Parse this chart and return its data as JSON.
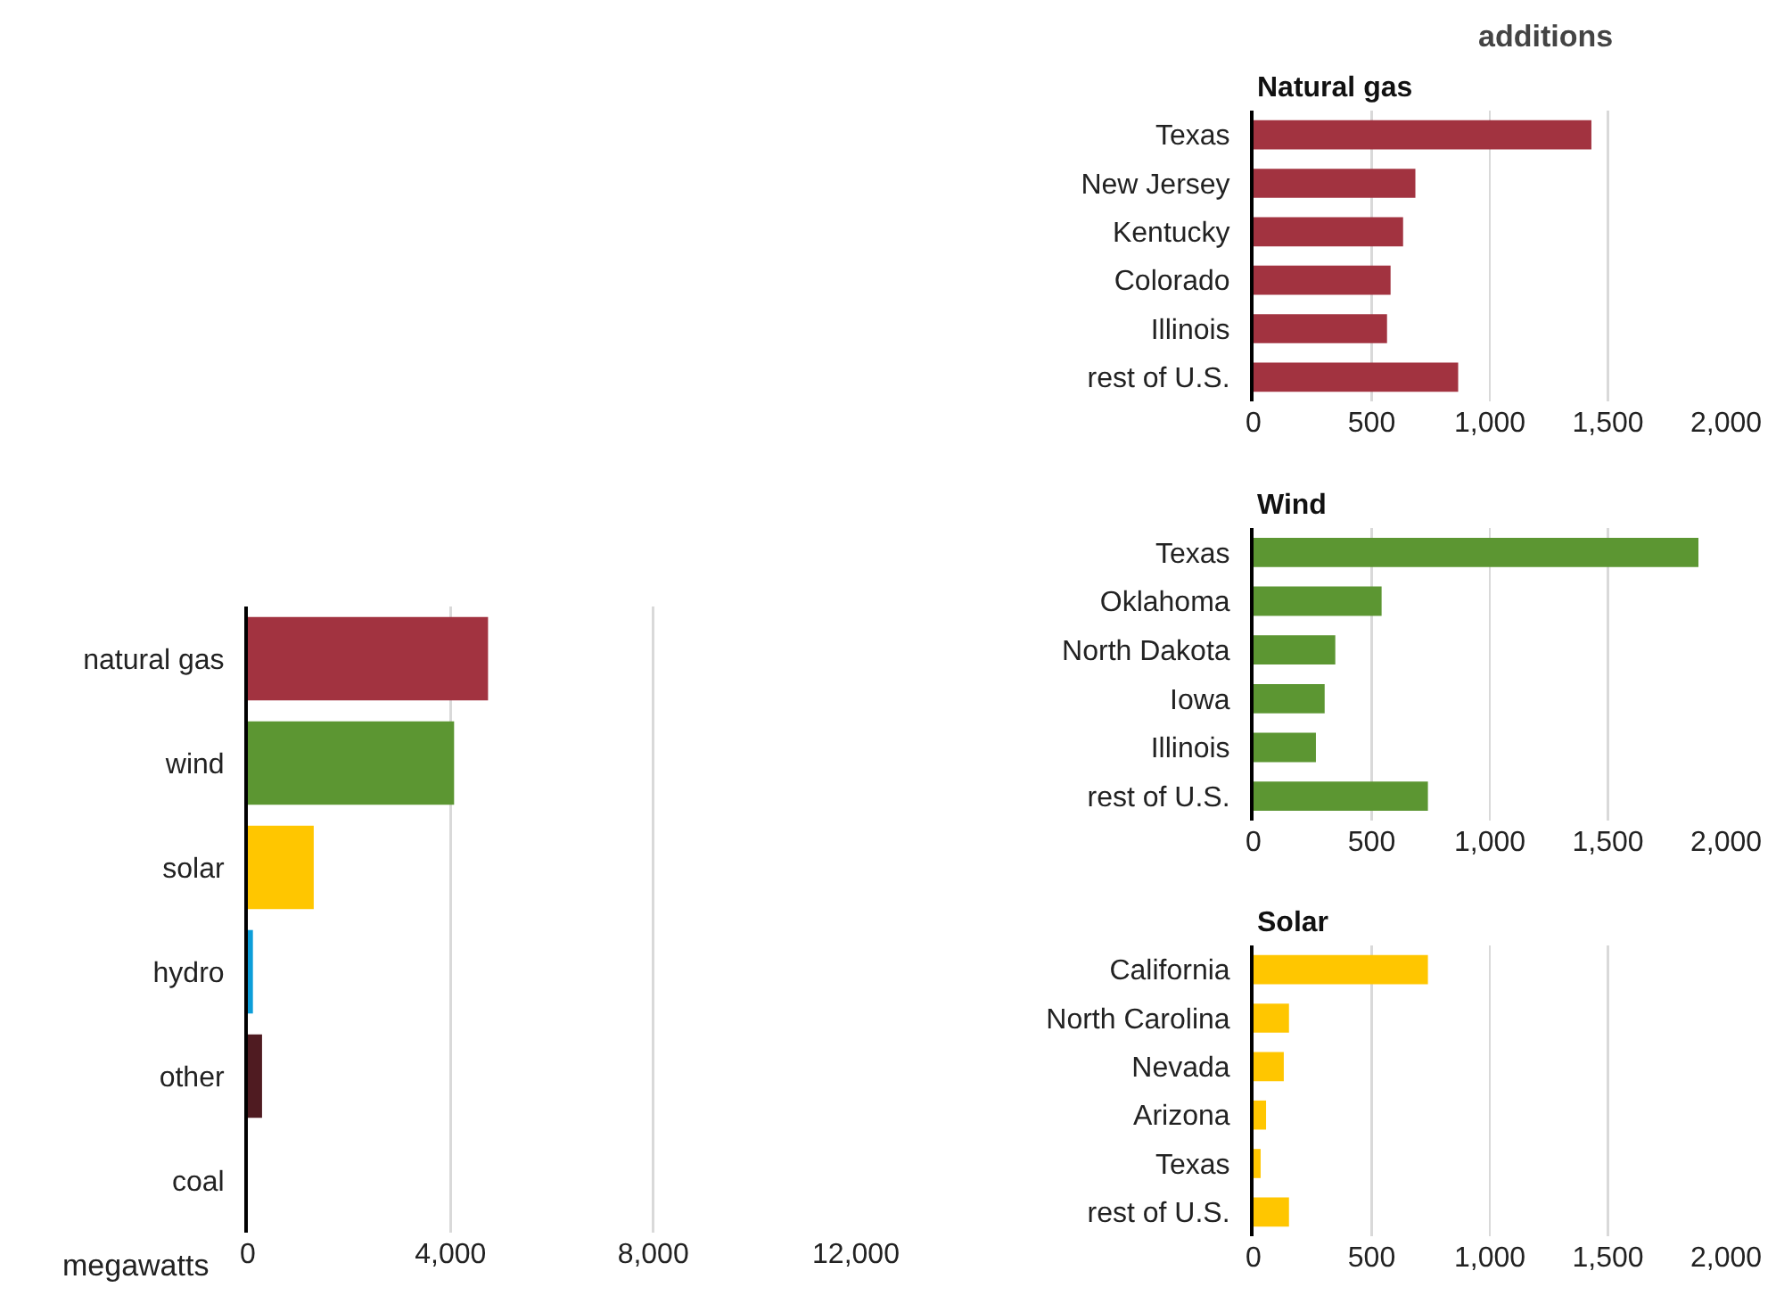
{
  "chart_data": [
    {
      "type": "bar",
      "orientation": "horizontal",
      "xlabel": "megawatts",
      "categories": [
        "natural gas",
        "wind",
        "solar",
        "hydro",
        "other",
        "coal"
      ],
      "values": [
        4740,
        4070,
        1300,
        100,
        280,
        0
      ],
      "colors": [
        "#a23340",
        "#5c9632",
        "#ffc600",
        "#0d9ed9",
        "#4f1b21",
        "#000000"
      ],
      "xlim": [
        0,
        12000
      ],
      "xticks": [
        {
          "value": 0,
          "label": "0"
        },
        {
          "value": 4000,
          "label": "4,000"
        },
        {
          "value": 8000,
          "label": "8,000"
        },
        {
          "value": 12000,
          "label": "12,000"
        }
      ],
      "grid": "x"
    },
    {
      "type": "bar",
      "orientation": "horizontal",
      "title": "Natural gas",
      "annotations": [
        "additions"
      ],
      "categories": [
        "Texas",
        "New Jersey",
        "Kentucky",
        "Colorado",
        "Illinois",
        "rest of U.S."
      ],
      "values": [
        1430,
        685,
        633,
        580,
        565,
        866
      ],
      "color": "#a23340",
      "xlim": [
        0,
        2000
      ],
      "xticks": [
        {
          "value": 0,
          "label": "0"
        },
        {
          "value": 500,
          "label": "500"
        },
        {
          "value": 1000,
          "label": "1,000"
        },
        {
          "value": 1500,
          "label": "1,500"
        },
        {
          "value": 2000,
          "label": "2,000"
        }
      ],
      "grid": "x"
    },
    {
      "type": "bar",
      "orientation": "horizontal",
      "title": "Wind",
      "categories": [
        "Texas",
        "Oklahoma",
        "North Dakota",
        "Iowa",
        "Illinois",
        "rest of U.S."
      ],
      "values": [
        1883,
        542,
        346,
        301,
        264,
        738
      ],
      "color": "#5c9632",
      "xlim": [
        0,
        2000
      ],
      "xticks": [
        {
          "value": 0,
          "label": "0"
        },
        {
          "value": 500,
          "label": "500"
        },
        {
          "value": 1000,
          "label": "1,000"
        },
        {
          "value": 1500,
          "label": "1,500"
        },
        {
          "value": 2000,
          "label": "2,000"
        }
      ],
      "grid": "x"
    },
    {
      "type": "bar",
      "orientation": "horizontal",
      "title": "Solar",
      "categories": [
        "California",
        "North Carolina",
        "Nevada",
        "Arizona",
        "Texas",
        "rest of U.S."
      ],
      "values": [
        738,
        150,
        128,
        53,
        30,
        150
      ],
      "color": "#ffc600",
      "xlim": [
        0,
        2000
      ],
      "xticks": [
        {
          "value": 0,
          "label": "0"
        },
        {
          "value": 500,
          "label": "500"
        },
        {
          "value": 1000,
          "label": "1,000"
        },
        {
          "value": 1500,
          "label": "1,500"
        },
        {
          "value": 2000,
          "label": "2,000"
        }
      ],
      "grid": "x"
    }
  ]
}
